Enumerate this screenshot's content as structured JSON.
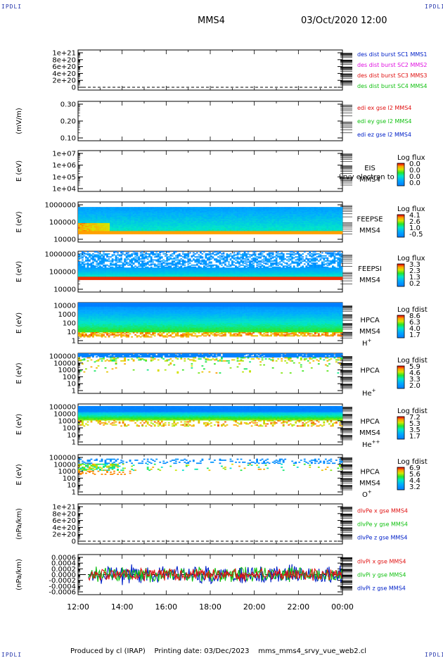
{
  "corner_label": "IPDLI",
  "header": {
    "spacecraft": "MMS4",
    "datetime": "03/Oct/2020 12:00"
  },
  "footer": {
    "producer": "Produced by cl (IRAP)",
    "printing": "Printing date: 03/Dec/2023",
    "script": "mms_mms4_srvy_vue_web2.cl"
  },
  "colors": {
    "red": "#e01010",
    "green": "#10c010",
    "blue": "#0020c8",
    "magenta": "#e010e0"
  },
  "chart_data": [
    {
      "type": "line",
      "panel": "des-dist-burst",
      "ylabel": "",
      "ytick_labels": [
        "1e+21",
        "8e+20",
        "6e+20",
        "4e+20",
        "2e+20",
        "0"
      ],
      "ylim": [
        0,
        1e+21
      ],
      "series": [
        {
          "name": "des dist burst SC1 MMS1",
          "color": "#0020c8",
          "values": []
        },
        {
          "name": "des dist burst SC2 MMS2",
          "color": "#e010e0",
          "values": []
        },
        {
          "name": "des dist burst SC3 MMS3",
          "color": "#e01010",
          "values": []
        },
        {
          "name": "des dist burst SC4 MMS4",
          "color": "#10c010",
          "values": []
        }
      ]
    },
    {
      "type": "line",
      "panel": "edi-e-gse",
      "ylabel": "(mV/m)",
      "ytick_labels": [
        "0.30",
        "0.20",
        "0.10"
      ],
      "ylim": [
        0.05,
        0.32
      ],
      "series": [
        {
          "name": "edi ex gse l2 MMS4",
          "color": "#e01010",
          "values": []
        },
        {
          "name": "edi ey gse l2 MMS4",
          "color": "#10c010",
          "values": []
        },
        {
          "name": "edi ez gse l2 MMS4",
          "color": "#0020c8",
          "values": []
        }
      ]
    },
    {
      "type": "heatmap",
      "panel": "EIS",
      "ylabel": "E (eV)",
      "ytick_labels": [
        "1e+07",
        "1e+06",
        "1e+05",
        "1e+04"
      ],
      "ylim": [
        10000.0,
        10000000.0
      ],
      "instrument": "EIS",
      "spacecraft": "MMS4",
      "overlay_text": "Lrvy electron to",
      "colorbar_title": "Log flux",
      "colorbar_ticks": [
        "0.0",
        "0.0",
        "0.0",
        "0.0"
      ]
    },
    {
      "type": "heatmap",
      "panel": "FEEPSE",
      "ylabel": "E (eV)",
      "ytick_labels": [
        "1000000",
        "100000",
        "10000"
      ],
      "ylim": [
        10000.0,
        1000000.0
      ],
      "instrument": "FEEPSE",
      "spacecraft": "MMS4",
      "colorbar_title": "Log flux",
      "colorbar_ticks": [
        "4.1",
        "2.6",
        "1.0",
        "-0.5"
      ]
    },
    {
      "type": "heatmap",
      "panel": "FEEPSI",
      "ylabel": "E (eV)",
      "ytick_labels": [
        "1000000",
        "100000",
        "10000"
      ],
      "ylim": [
        10000.0,
        1000000.0
      ],
      "instrument": "FEEPSI",
      "spacecraft": "MMS4",
      "colorbar_title": "Log flux",
      "colorbar_ticks": [
        "3.3",
        "2.3",
        "1.3",
        "0.2"
      ]
    },
    {
      "type": "heatmap",
      "panel": "HPCA-H",
      "ylabel": "E (eV)",
      "ytick_labels": [
        "10000",
        "1000",
        "100",
        "10",
        "1"
      ],
      "ylim": [
        1,
        30000.0
      ],
      "instrument": "HPCA",
      "spacecraft": "MMS4",
      "species": "H",
      "species_sup": "+",
      "colorbar_title": "Log fdist",
      "colorbar_ticks": [
        "8.6",
        "6.3",
        "4.0",
        "1.7"
      ]
    },
    {
      "type": "heatmap",
      "panel": "HPCA-He",
      "ylabel": "E (eV)",
      "ytick_labels": [
        "100000",
        "10000",
        "1000",
        "100",
        "10",
        "1"
      ],
      "ylim": [
        1,
        100000.0
      ],
      "instrument": "HPCA",
      "spacecraft": "",
      "species": "He",
      "species_sup": "+",
      "colorbar_title": "Log fdist",
      "colorbar_ticks": [
        "5.9",
        "4.6",
        "3.3",
        "2.0"
      ]
    },
    {
      "type": "heatmap",
      "panel": "HPCA-He2",
      "ylabel": "E (eV)",
      "ytick_labels": [
        "100000",
        "10000",
        "1000",
        "100",
        "10",
        "1"
      ],
      "ylim": [
        1,
        100000.0
      ],
      "instrument": "HPCA",
      "spacecraft": "MMS4",
      "species": "He",
      "species_sup": "++",
      "colorbar_title": "Log fdist",
      "colorbar_ticks": [
        "7.2",
        "5.3",
        "3.5",
        "1.7"
      ]
    },
    {
      "type": "heatmap",
      "panel": "HPCA-O",
      "ylabel": "E (eV)",
      "ytick_labels": [
        "100000",
        "10000",
        "1000",
        "100",
        "10",
        "1"
      ],
      "ylim": [
        1,
        100000.0
      ],
      "instrument": "HPCA",
      "spacecraft": "MMS4",
      "species": "O",
      "species_sup": "+",
      "colorbar_title": "Log fdist",
      "colorbar_ticks": [
        "6.9",
        "5.6",
        "4.4",
        "3.2"
      ]
    },
    {
      "type": "line",
      "panel": "dlvPe",
      "ylabel": "(nPa/km)",
      "ytick_labels": [
        "1e+21",
        "8e+20",
        "6e+20",
        "4e+20",
        "2e+20",
        "0"
      ],
      "ylim": [
        0,
        1e+21
      ],
      "series": [
        {
          "name": "dlvPe x gse MMS4",
          "color": "#e01010",
          "values": []
        },
        {
          "name": "dlvPe y gse MMS4",
          "color": "#10c010",
          "values": []
        },
        {
          "name": "dlvPe z gse MMS4",
          "color": "#0020c8",
          "values": []
        }
      ]
    },
    {
      "type": "line",
      "panel": "dlvPi",
      "ylabel": "(nPa/km)",
      "ytick_labels": [
        "0.0006",
        "0.0004",
        "0.0002",
        "0.0000",
        "-0.0002",
        "-0.0004",
        "-0.0006"
      ],
      "ylim": [
        -0.0007,
        0.0007
      ],
      "series": [
        {
          "name": "dlvPi x gse MMS4",
          "color": "#e01010",
          "values": []
        },
        {
          "name": "dlvPi y gse MMS4",
          "color": "#10c010",
          "values": []
        },
        {
          "name": "dlvPi z gse MMS4",
          "color": "#0020c8",
          "values": []
        }
      ]
    }
  ],
  "x_axis": {
    "tick_labels": [
      "12:00",
      "14:00",
      "16:00",
      "18:00",
      "20:00",
      "22:00",
      "00:00"
    ]
  }
}
